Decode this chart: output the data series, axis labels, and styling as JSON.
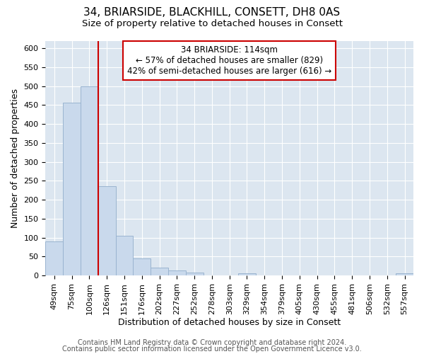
{
  "title1": "34, BRIARSIDE, BLACKHILL, CONSETT, DH8 0AS",
  "title2": "Size of property relative to detached houses in Consett",
  "xlabel": "Distribution of detached houses by size in Consett",
  "ylabel": "Number of detached properties",
  "categories": [
    "49sqm",
    "75sqm",
    "100sqm",
    "126sqm",
    "151sqm",
    "176sqm",
    "202sqm",
    "227sqm",
    "252sqm",
    "278sqm",
    "303sqm",
    "329sqm",
    "354sqm",
    "379sqm",
    "405sqm",
    "430sqm",
    "455sqm",
    "481sqm",
    "506sqm",
    "532sqm",
    "557sqm"
  ],
  "values": [
    90,
    457,
    500,
    235,
    104,
    45,
    20,
    14,
    8,
    0,
    0,
    5,
    0,
    0,
    0,
    0,
    0,
    0,
    0,
    0,
    5
  ],
  "bar_color": "#c9d9ec",
  "bar_edge_color": "#9ab4d0",
  "vline_x": 2.5,
  "vline_color": "#cc0000",
  "annotation_text": "34 BRIARSIDE: 114sqm\n← 57% of detached houses are smaller (829)\n42% of semi-detached houses are larger (616) →",
  "annotation_box_color": "#ffffff",
  "annotation_box_edge": "#cc0000",
  "ylim": [
    0,
    620
  ],
  "yticks": [
    0,
    50,
    100,
    150,
    200,
    250,
    300,
    350,
    400,
    450,
    500,
    550,
    600
  ],
  "footer1": "Contains HM Land Registry data © Crown copyright and database right 2024.",
  "footer2": "Contains public sector information licensed under the Open Government Licence v3.0.",
  "background_color": "#ffffff",
  "plot_bg_color": "#dce6f0",
  "title1_fontsize": 11,
  "title2_fontsize": 9.5,
  "xlabel_fontsize": 9,
  "ylabel_fontsize": 9,
  "tick_fontsize": 8,
  "footer_fontsize": 7,
  "annotation_fontsize": 8.5
}
